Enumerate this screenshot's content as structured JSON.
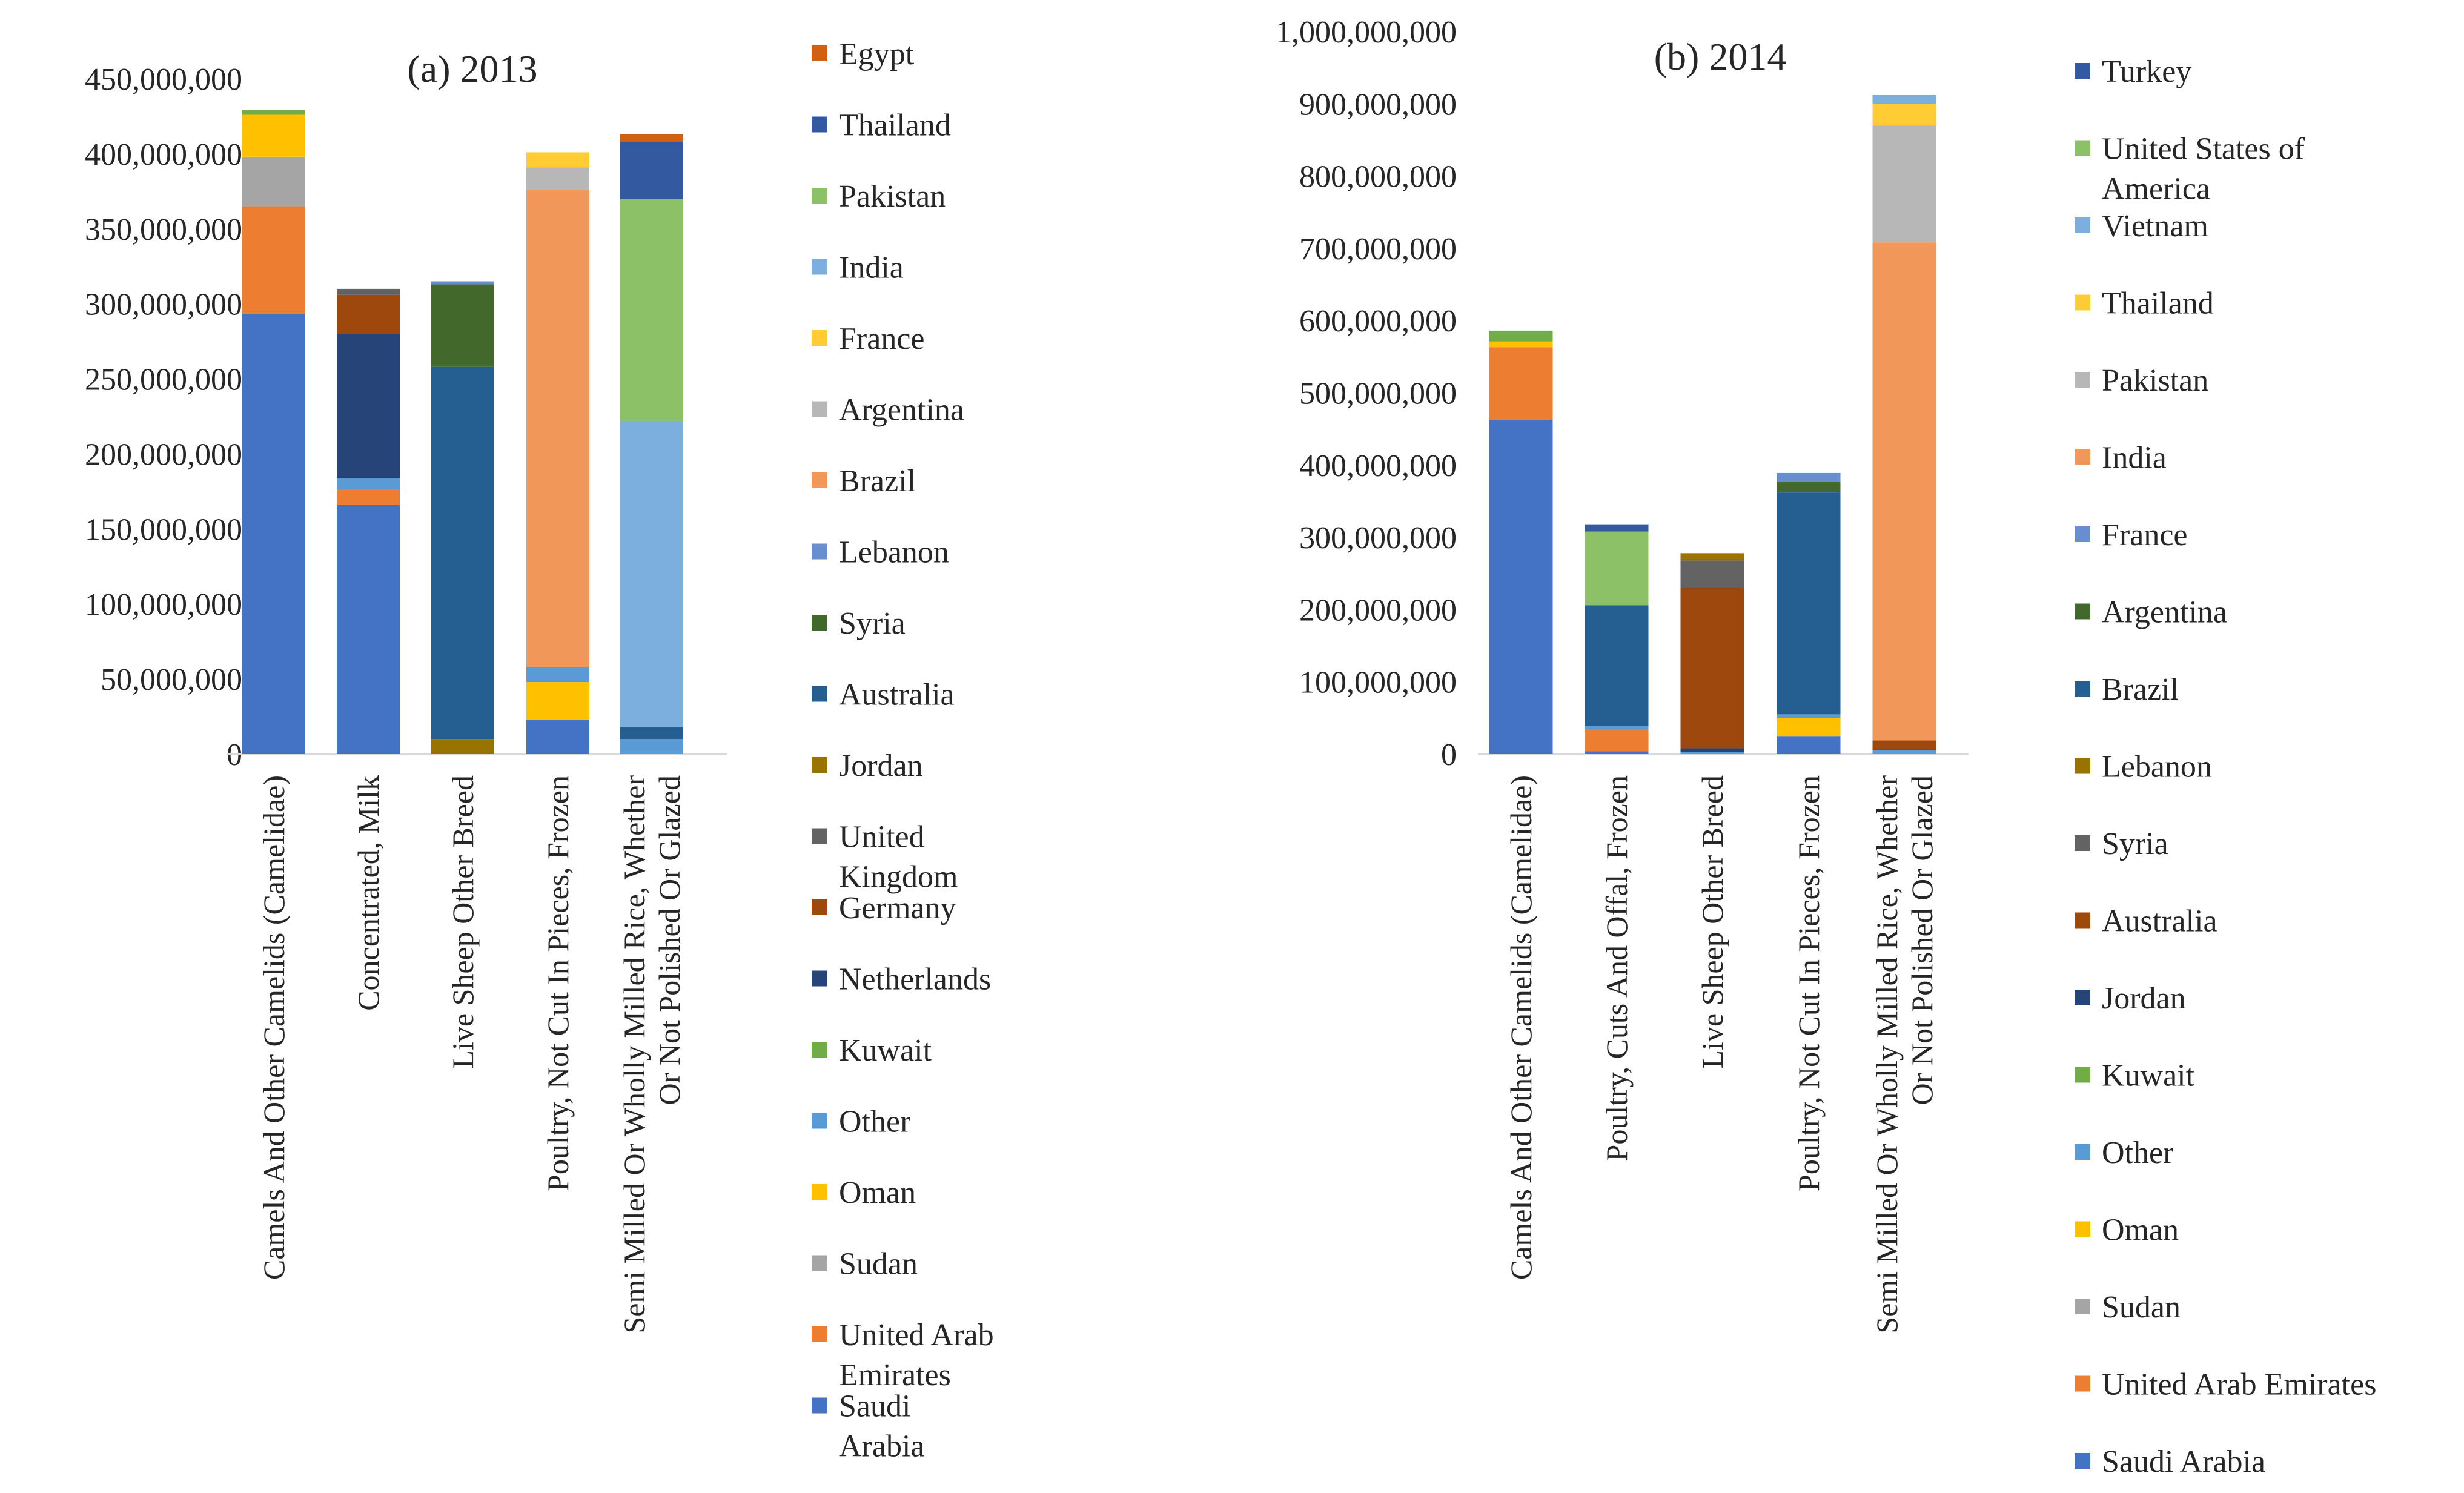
{
  "chart_data": [
    {
      "type": "bar",
      "stacked": true,
      "title": "(a) 2013",
      "categories": [
        "Camels And Other Camelids (Camelidae)",
        "Concentrated, Milk",
        "Live Sheep Other Breed",
        "Poultry, Not Cut In Pieces, Frozen",
        "Semi Milled Or Wholly Milled Rice, Whether Or Not Polished Or Glazed"
      ],
      "ylim": [
        0,
        450000000
      ],
      "yticks": [
        0,
        50000000,
        100000000,
        150000000,
        200000000,
        250000000,
        300000000,
        350000000,
        400000000,
        450000000
      ],
      "ytick_labels": [
        "0",
        "50,000,000",
        "100,000,000",
        "150,000,000",
        "200,000,000",
        "250,000,000",
        "300,000,000",
        "350,000,000",
        "400,000,000",
        "450,000,000"
      ],
      "legend_position": "right",
      "series": [
        {
          "name": "Saudi Arabia",
          "color": "#4472C4",
          "values": [
            293000000,
            166000000,
            0,
            23000000,
            0
          ]
        },
        {
          "name": "United Arab Emirates",
          "color": "#ED7D31",
          "values": [
            72000000,
            10000000,
            0,
            0,
            0
          ]
        },
        {
          "name": "Sudan",
          "color": "#A5A5A5",
          "values": [
            33000000,
            0,
            0,
            0,
            0
          ]
        },
        {
          "name": "Oman",
          "color": "#FFC000",
          "values": [
            28000000,
            0,
            0,
            25000000,
            0
          ]
        },
        {
          "name": "Other",
          "color": "#5B9BD5",
          "values": [
            0,
            8000000,
            0,
            10000000,
            10000000
          ]
        },
        {
          "name": "Kuwait",
          "color": "#70AD47",
          "values": [
            3000000,
            0,
            0,
            0,
            0
          ]
        },
        {
          "name": "Netherlands",
          "color": "#264478",
          "values": [
            0,
            96000000,
            0,
            0,
            0
          ]
        },
        {
          "name": "Germany",
          "color": "#9E480E",
          "values": [
            0,
            26000000,
            0,
            0,
            0
          ]
        },
        {
          "name": "United Kingdom",
          "color": "#636363",
          "values": [
            0,
            4000000,
            0,
            0,
            0
          ]
        },
        {
          "name": "Jordan",
          "color": "#997300",
          "values": [
            0,
            0,
            10000000,
            0,
            0
          ]
        },
        {
          "name": "Australia",
          "color": "#255E91",
          "values": [
            0,
            0,
            248000000,
            0,
            8000000
          ]
        },
        {
          "name": "Syria",
          "color": "#43682B",
          "values": [
            0,
            0,
            55000000,
            0,
            0
          ]
        },
        {
          "name": "Lebanon",
          "color": "#698ED0",
          "values": [
            0,
            0,
            2000000,
            0,
            0
          ]
        },
        {
          "name": "Brazil",
          "color": "#F1975A",
          "values": [
            0,
            0,
            0,
            318000000,
            0
          ]
        },
        {
          "name": "Argentina",
          "color": "#B7B7B7",
          "values": [
            0,
            0,
            0,
            15000000,
            0
          ]
        },
        {
          "name": "France",
          "color": "#FFCD33",
          "values": [
            0,
            0,
            0,
            10000000,
            0
          ]
        },
        {
          "name": "India",
          "color": "#7CAFDD",
          "values": [
            0,
            0,
            0,
            0,
            204000000
          ]
        },
        {
          "name": "Pakistan",
          "color": "#8CC168",
          "values": [
            0,
            0,
            0,
            0,
            148000000
          ]
        },
        {
          "name": "Thailand",
          "color": "#335AA1",
          "values": [
            0,
            0,
            0,
            0,
            38000000
          ]
        },
        {
          "name": "Egypt",
          "color": "#D26012",
          "values": [
            0,
            0,
            0,
            0,
            5000000
          ]
        }
      ],
      "legend_order": [
        "Egypt",
        "Thailand",
        "Pakistan",
        "India",
        "France",
        "Argentina",
        "Brazil",
        "Lebanon",
        "Syria",
        "Australia",
        "Jordan",
        "United Kingdom",
        "Germany",
        "Netherlands",
        "Kuwait",
        "Other",
        "Oman",
        "Sudan",
        "United Arab Emirates",
        "Saudi Arabia"
      ]
    },
    {
      "type": "bar",
      "stacked": true,
      "title": "(b) 2014",
      "categories": [
        "Camels And Other Camelids (Camelidae)",
        "Poultry, Cuts And Offal, Frozen",
        "Live Sheep Other Breed",
        "Poultry, Not Cut In Pieces, Frozen",
        "Semi Milled Or Wholly Milled Rice, Whether Or Not Polished Or Glazed"
      ],
      "ylim": [
        0,
        1000000000
      ],
      "yticks": [
        0,
        100000000,
        200000000,
        300000000,
        400000000,
        500000000,
        600000000,
        700000000,
        800000000,
        900000000,
        1000000000
      ],
      "ytick_labels": [
        "0",
        "100,000,000",
        "200,000,000",
        "300,000,000",
        "400,000,000",
        "500,000,000",
        "600,000,000",
        "700,000,000",
        "800,000,000",
        "900,000,000",
        "1,000,000,000"
      ],
      "legend_position": "right",
      "series": [
        {
          "name": "Saudi Arabia",
          "color": "#4472C4",
          "values": [
            463000000,
            4000000,
            0,
            25000000,
            0
          ]
        },
        {
          "name": "United Arab Emirates",
          "color": "#ED7D31",
          "values": [
            100000000,
            30000000,
            0,
            0,
            0
          ]
        },
        {
          "name": "Sudan",
          "color": "#A5A5A5",
          "values": [
            0,
            0,
            0,
            0,
            0
          ]
        },
        {
          "name": "Oman",
          "color": "#FFC000",
          "values": [
            8000000,
            0,
            0,
            25000000,
            0
          ]
        },
        {
          "name": "Other",
          "color": "#5B9BD5",
          "values": [
            0,
            5000000,
            3000000,
            5000000,
            5000000
          ]
        },
        {
          "name": "Kuwait",
          "color": "#70AD47",
          "values": [
            15000000,
            0,
            0,
            0,
            0
          ]
        },
        {
          "name": "Jordan",
          "color": "#264478",
          "values": [
            0,
            0,
            5000000,
            0,
            0
          ]
        },
        {
          "name": "Australia",
          "color": "#9E480E",
          "values": [
            0,
            0,
            222000000,
            0,
            14000000
          ]
        },
        {
          "name": "Syria",
          "color": "#636363",
          "values": [
            0,
            0,
            38000000,
            0,
            0
          ]
        },
        {
          "name": "Lebanon",
          "color": "#997300",
          "values": [
            0,
            0,
            10000000,
            0,
            0
          ]
        },
        {
          "name": "Brazil",
          "color": "#255E91",
          "values": [
            0,
            167000000,
            0,
            307000000,
            0
          ]
        },
        {
          "name": "Argentina",
          "color": "#43682B",
          "values": [
            0,
            0,
            0,
            15000000,
            0
          ]
        },
        {
          "name": "France",
          "color": "#698ED0",
          "values": [
            0,
            0,
            0,
            12000000,
            0
          ]
        },
        {
          "name": "India",
          "color": "#F1975A",
          "values": [
            0,
            0,
            0,
            0,
            689000000
          ]
        },
        {
          "name": "Pakistan",
          "color": "#B7B7B7",
          "values": [
            0,
            0,
            0,
            0,
            162000000
          ]
        },
        {
          "name": "Thailand",
          "color": "#FFCD33",
          "values": [
            0,
            0,
            0,
            0,
            30000000
          ]
        },
        {
          "name": "Vietnam",
          "color": "#7CAFDD",
          "values": [
            0,
            0,
            0,
            0,
            12000000
          ]
        },
        {
          "name": "United States of America",
          "color": "#8CC168",
          "values": [
            0,
            102000000,
            0,
            0,
            0
          ]
        },
        {
          "name": "Turkey",
          "color": "#335AA1",
          "values": [
            0,
            10000000,
            0,
            0,
            0
          ]
        }
      ],
      "legend_order": [
        "Turkey",
        "United States of America",
        "Vietnam",
        "Thailand",
        "Pakistan",
        "India",
        "France",
        "Argentina",
        "Brazil",
        "Lebanon",
        "Syria",
        "Australia",
        "Jordan",
        "Kuwait",
        "Other",
        "Oman",
        "Sudan",
        "United Arab Emirates",
        "Saudi Arabia"
      ]
    }
  ]
}
